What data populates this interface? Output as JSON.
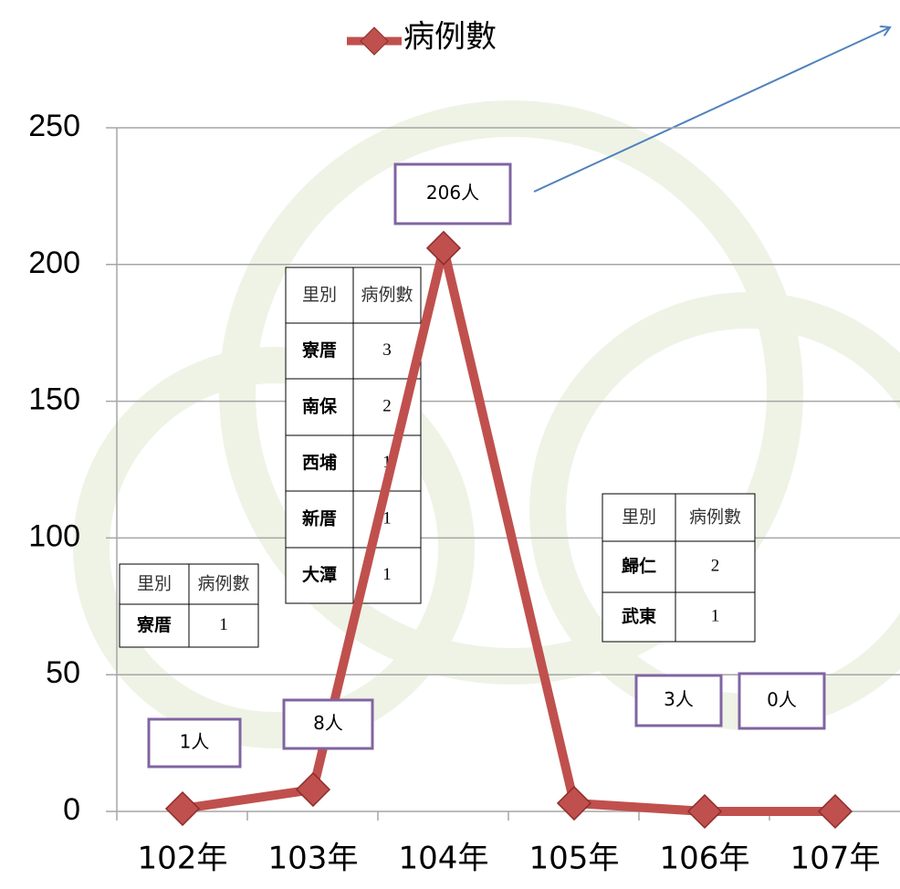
{
  "chart_data": {
    "type": "line",
    "categories": [
      "102年",
      "103年",
      "104年",
      "105年",
      "106年",
      "107年"
    ],
    "series": [
      {
        "name": "病例數",
        "color": "#c0504d",
        "values": [
          1,
          8,
          206,
          3,
          0,
          0
        ],
        "value_labels": [
          "1人",
          "8人",
          "206人",
          "3人",
          "0人",
          null
        ]
      }
    ],
    "ylim": [
      0,
      250
    ],
    "yticks": [
      0,
      50,
      100,
      150,
      200,
      250
    ],
    "grid": true,
    "legend": "top",
    "tables": [
      {
        "header": [
          "里別",
          "病例數"
        ],
        "rows": [
          [
            "寮厝",
            1
          ]
        ]
      },
      {
        "header": [
          "里別",
          "病例數"
        ],
        "rows": [
          [
            "寮厝",
            3
          ],
          [
            "南保",
            2
          ],
          [
            "西埔",
            1
          ],
          [
            "新厝",
            1
          ],
          [
            "大潭",
            1
          ]
        ]
      },
      {
        "header": [
          "里別",
          "病例數"
        ],
        "rows": [
          [
            "歸仁",
            2
          ],
          [
            "武東",
            1
          ]
        ]
      }
    ]
  }
}
